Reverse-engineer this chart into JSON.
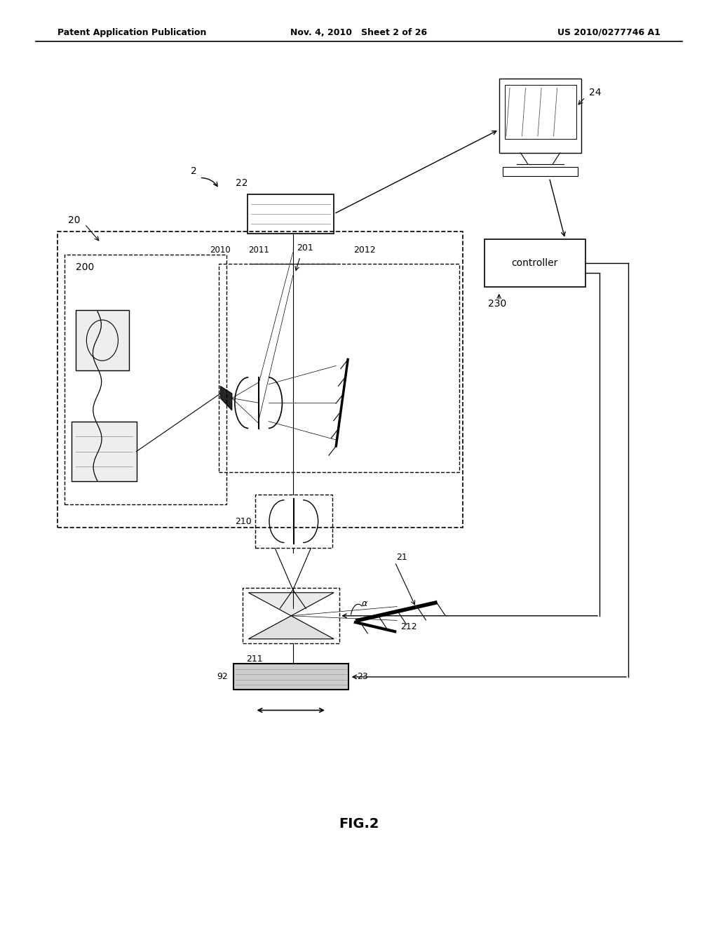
{
  "bg_color": "#ffffff",
  "header_left": "Patent Application Publication",
  "header_mid": "Nov. 4, 2010   Sheet 2 of 26",
  "header_right": "US 2010/0277746 A1",
  "figure_label": "FIG.2"
}
